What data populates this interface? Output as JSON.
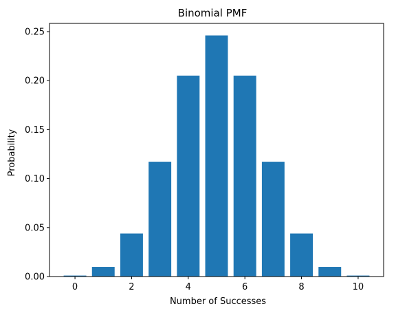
{
  "chart_data": {
    "type": "bar",
    "title": "Binomial PMF",
    "xlabel": "Number of Successes",
    "ylabel": "Probability",
    "bar_color": "#1f77b4",
    "x": [
      0,
      1,
      2,
      3,
      4,
      5,
      6,
      7,
      8,
      9,
      10
    ],
    "values": [
      0.001,
      0.0098,
      0.0439,
      0.1172,
      0.2051,
      0.2461,
      0.2051,
      0.1172,
      0.0439,
      0.0098,
      0.001
    ],
    "xlim": [
      -0.9,
      10.9
    ],
    "ylim": [
      0,
      0.2584
    ],
    "xticks": [
      0,
      2,
      4,
      6,
      8,
      10
    ],
    "xtick_labels": [
      "0",
      "2",
      "4",
      "6",
      "8",
      "10"
    ],
    "yticks": [
      0.0,
      0.05,
      0.1,
      0.15,
      0.2,
      0.25
    ],
    "ytick_labels": [
      "0.00",
      "0.05",
      "0.10",
      "0.15",
      "0.20",
      "0.25"
    ],
    "grid": false,
    "legend": "none"
  }
}
